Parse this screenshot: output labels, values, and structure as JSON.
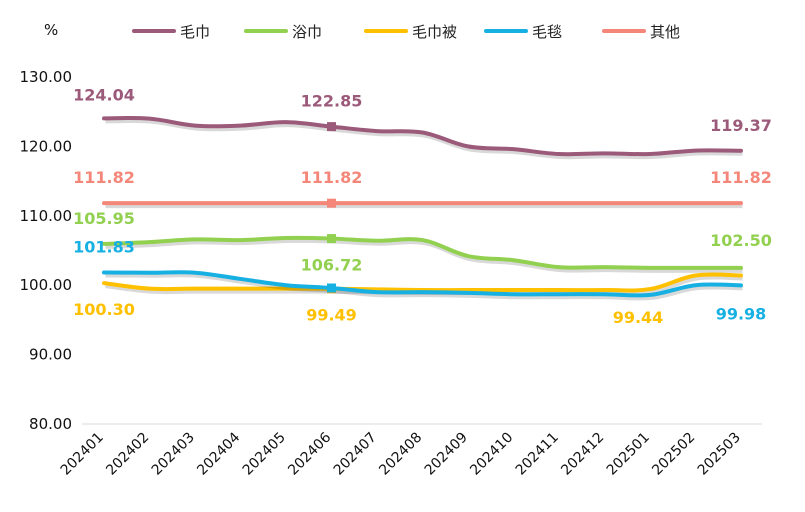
{
  "chart_data": {
    "type": "line",
    "ylabel": "%",
    "ylim": [
      80,
      130
    ],
    "yticks": [
      "80.00",
      "90.00",
      "100.00",
      "110.00",
      "120.00",
      "130.00"
    ],
    "categories": [
      "202401",
      "202402",
      "202403",
      "202404",
      "202405",
      "202406",
      "202407",
      "202408",
      "202409",
      "202410",
      "202411",
      "202412",
      "202501",
      "202502",
      "202503"
    ],
    "legend_position": "top",
    "grid": false,
    "series": [
      {
        "name": "毛巾",
        "color": "#9b5a7a",
        "values": [
          124.04,
          124.0,
          123.0,
          123.0,
          123.5,
          122.85,
          122.2,
          122.0,
          120.0,
          119.6,
          118.9,
          119.0,
          118.9,
          119.4,
          119.37
        ],
        "labels": [
          {
            "index": 0,
            "text": "124.04"
          },
          {
            "index": 5,
            "text": "122.85"
          },
          {
            "index": 14,
            "text": "119.37"
          }
        ]
      },
      {
        "name": "浴巾",
        "color": "#92d050",
        "values": [
          105.95,
          106.2,
          106.6,
          106.5,
          106.8,
          106.72,
          106.4,
          106.5,
          104.2,
          103.6,
          102.6,
          102.6,
          102.5,
          102.5,
          102.5
        ],
        "labels": [
          {
            "index": 0,
            "text": "105.95"
          },
          {
            "index": 5,
            "text": "106.72"
          },
          {
            "index": 14,
            "text": "102.50"
          }
        ]
      },
      {
        "name": "毛巾被",
        "color": "#ffc000",
        "values": [
          100.3,
          99.5,
          99.5,
          99.5,
          99.5,
          99.49,
          99.4,
          99.3,
          99.3,
          99.3,
          99.3,
          99.3,
          99.44,
          101.4,
          101.4
        ],
        "labels": [
          {
            "index": 0,
            "text": "100.30"
          },
          {
            "index": 5,
            "text": "99.49"
          },
          {
            "index": 12,
            "text": "99.44"
          }
        ]
      },
      {
        "name": "毛毯",
        "color": "#17b0e2",
        "values": [
          101.83,
          101.8,
          101.8,
          100.9,
          100.0,
          99.6,
          99.0,
          99.0,
          98.9,
          98.7,
          98.7,
          98.7,
          98.6,
          100.0,
          99.98
        ],
        "labels": [
          {
            "index": 0,
            "text": "101.83"
          },
          {
            "index": 14,
            "text": "99.98"
          }
        ]
      },
      {
        "name": "其他",
        "color": "#f4877a",
        "values": [
          111.82,
          111.82,
          111.82,
          111.82,
          111.82,
          111.82,
          111.82,
          111.82,
          111.82,
          111.82,
          111.82,
          111.82,
          111.82,
          111.82,
          111.82
        ],
        "labels": [
          {
            "index": 0,
            "text": "111.82"
          },
          {
            "index": 5,
            "text": "111.82"
          },
          {
            "index": 14,
            "text": "111.82"
          }
        ]
      }
    ]
  }
}
